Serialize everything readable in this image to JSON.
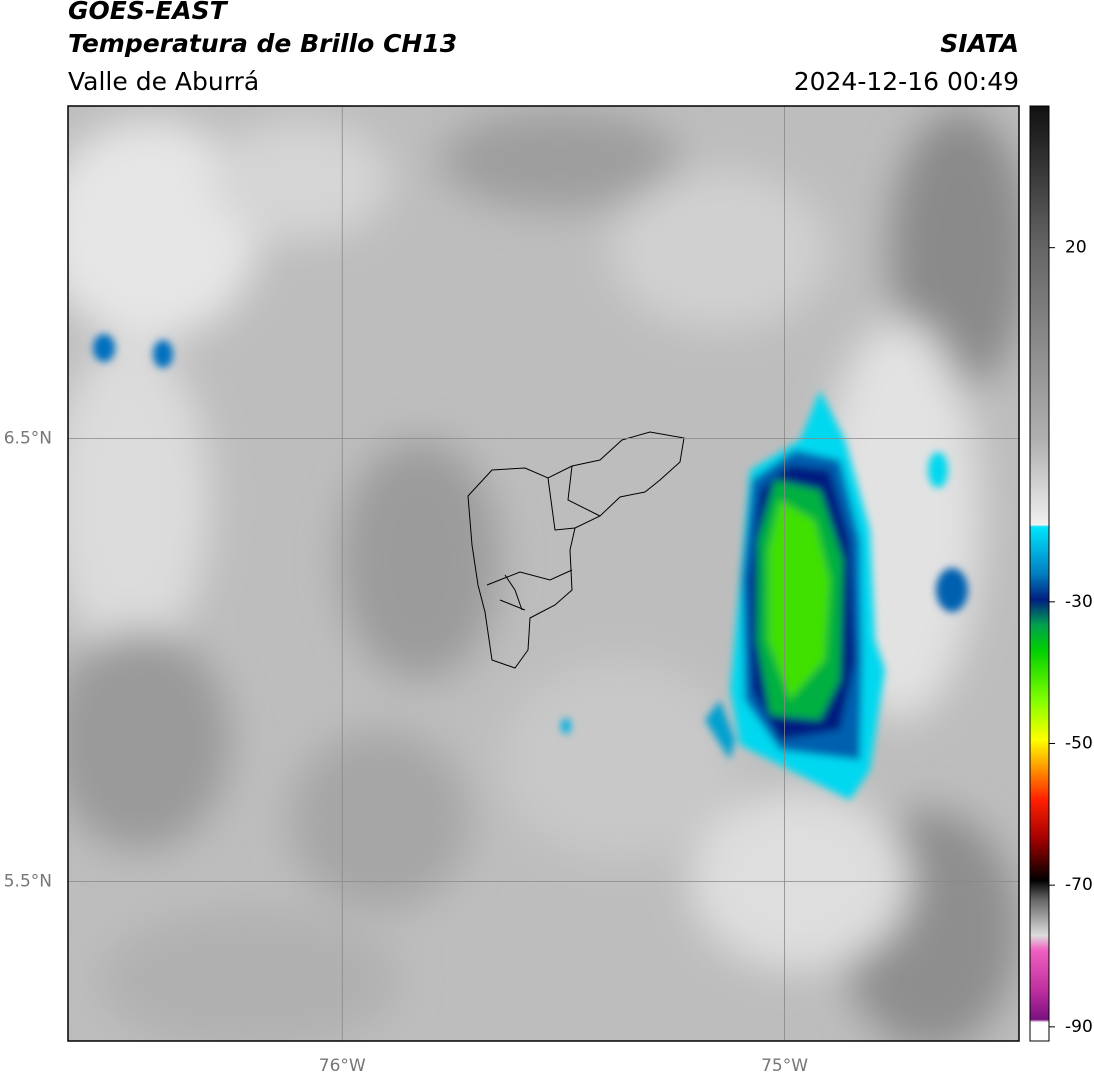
{
  "header": {
    "satellite": "GOES-EAST",
    "product": "Temperatura de Brillo CH13",
    "region": "Valle de Aburrá",
    "agency": "SIATA",
    "datetime": "2024-12-16 00:49"
  },
  "map": {
    "xlim": [
      -76.62,
      -74.47
    ],
    "ylim": [
      5.14,
      7.25
    ],
    "xticks": [
      {
        "value": -76,
        "label": "76°W"
      },
      {
        "value": -75,
        "label": "75°W"
      }
    ],
    "yticks": [
      {
        "value": 6.5,
        "label": "6.5°N"
      },
      {
        "value": 5.5,
        "label": "5.5°N"
      }
    ],
    "grid": true
  },
  "colorbar": {
    "lim": [
      -92,
      40
    ],
    "ticks": [
      20,
      -30,
      -50,
      -70,
      -90
    ]
  }
}
